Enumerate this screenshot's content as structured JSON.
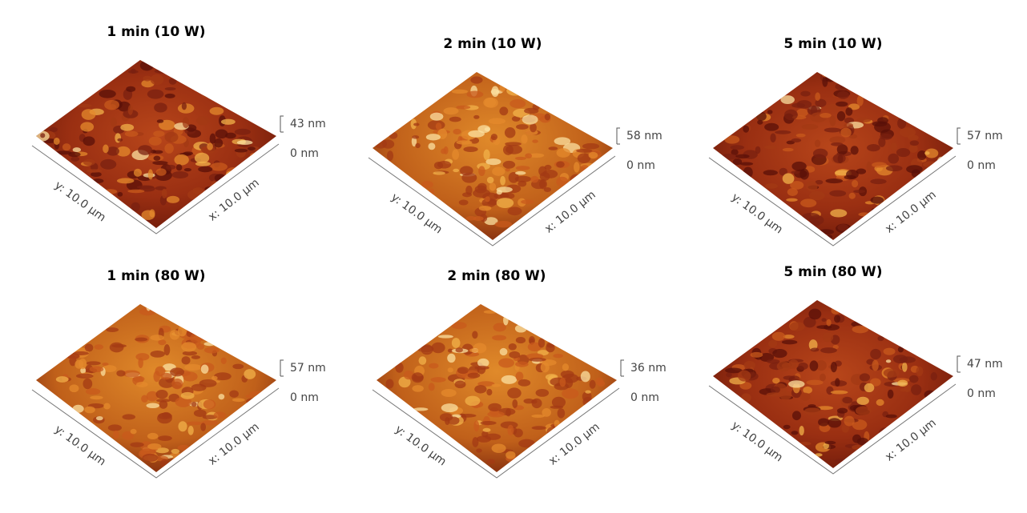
{
  "panels": [
    {
      "title": "1 min (10 W)",
      "z_max": "43 nm",
      "z_min": "0 nm",
      "y_label": "y: 10.0 µm",
      "x_label": "x: 10.0 µm"
    },
    {
      "title": "2 min (10 W)",
      "z_max": "58 nm",
      "z_min": "0 nm",
      "y_label": "y: 10.0 µm",
      "x_label": "x: 10.0 µm"
    },
    {
      "title": "5 min (10 W)",
      "z_max": "57 nm",
      "z_min": "0 nm",
      "y_label": "y: 10.0 µm",
      "x_label": "x: 10.0 µm"
    },
    {
      "title": "1 min (80 W)",
      "z_max": "57 nm",
      "z_min": "0 nm",
      "y_label": "y: 10.0 µm",
      "x_label": "x: 10.0 µm"
    },
    {
      "title": "2 min (80 W)",
      "z_max": "36 nm",
      "z_min": "0 nm",
      "y_label": "y: 10.0 µm",
      "x_label": "x: 10.0 µm"
    },
    {
      "title": "5 min (80 W)",
      "z_max": "47 nm",
      "z_min": "0 nm",
      "y_label": "y: 10.0 µm",
      "x_label": "x: 10.0 µm"
    }
  ]
}
